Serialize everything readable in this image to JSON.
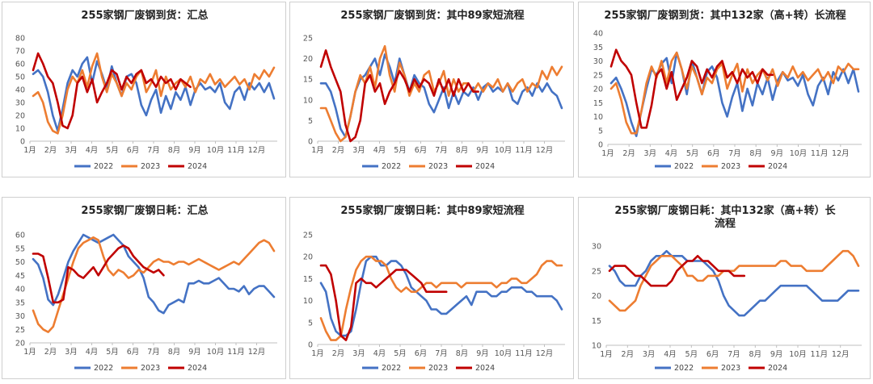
{
  "chart_data": [
    {
      "type": "line",
      "title": "255家钢厂废钢到货：汇总",
      "title_lines": [
        "255家钢厂废钢到货：汇总"
      ],
      "xlabel": "",
      "ylabel": "",
      "x_ticks": [
        "1月",
        "2月",
        "3月",
        "4月",
        "5月",
        "6月",
        "7月",
        "8月",
        "9月",
        "10月",
        "11月",
        "12月"
      ],
      "ylim": [
        0,
        80
      ],
      "y_step": 10,
      "grid": false,
      "legend_position": "bottom",
      "series": [
        {
          "name": "2022",
          "color": "#4472c4",
          "values": [
            52,
            55,
            50,
            38,
            20,
            8,
            25,
            45,
            55,
            50,
            60,
            65,
            45,
            62,
            52,
            40,
            58,
            45,
            35,
            50,
            52,
            45,
            28,
            20,
            32,
            40,
            22,
            35,
            25,
            38,
            32,
            42,
            28,
            40,
            45,
            40,
            42,
            38,
            45,
            30,
            25,
            38,
            42,
            32,
            45,
            40,
            45,
            38,
            45,
            33
          ]
        },
        {
          "name": "2023",
          "color": "#ed7d31",
          "values": [
            35,
            38,
            30,
            15,
            8,
            6,
            20,
            40,
            50,
            45,
            55,
            42,
            58,
            68,
            50,
            38,
            52,
            45,
            35,
            45,
            40,
            50,
            55,
            38,
            45,
            55,
            35,
            50,
            40,
            45,
            48,
            42,
            50,
            38,
            48,
            45,
            52,
            44,
            48,
            42,
            46,
            50,
            44,
            48,
            40,
            52,
            48,
            55,
            50,
            57
          ]
        },
        {
          "name": "2024",
          "color": "#c00000",
          "values": [
            55,
            68,
            60,
            50,
            45,
            30,
            12,
            10,
            20,
            45,
            50,
            38,
            48,
            30,
            38,
            45,
            55,
            52,
            40,
            50,
            45,
            52,
            55,
            45,
            48,
            42,
            50,
            45,
            48,
            40,
            48,
            45,
            42
          ]
        }
      ]
    },
    {
      "type": "line",
      "title": "255家钢厂废钢到货：其中89家短流程",
      "title_lines": [
        "255家钢厂废钢到货：其中89家短流程"
      ],
      "xlabel": "",
      "ylabel": "",
      "x_ticks": [
        "1月",
        "2月",
        "3月",
        "4月",
        "5月",
        "6月",
        "7月",
        "8月",
        "9月",
        "10月",
        "11月",
        "12月"
      ],
      "ylim": [
        0,
        25
      ],
      "y_step": 5,
      "grid": false,
      "legend_position": "bottom",
      "series": [
        {
          "name": "2022",
          "color": "#4472c4",
          "values": [
            14,
            14,
            12,
            8,
            3,
            1,
            6,
            12,
            15,
            16,
            18,
            20,
            16,
            21,
            18,
            14,
            20,
            16,
            12,
            16,
            14,
            13,
            9,
            7,
            10,
            13,
            8,
            12,
            9,
            12,
            11,
            13,
            10,
            13,
            14,
            12,
            13,
            12,
            14,
            10,
            9,
            12,
            13,
            11,
            14,
            12,
            14,
            12,
            11,
            8
          ]
        },
        {
          "name": "2023",
          "color": "#ed7d31",
          "values": [
            8,
            8,
            5,
            2,
            0,
            1,
            6,
            12,
            16,
            14,
            18,
            13,
            20,
            23,
            16,
            12,
            19,
            16,
            11,
            14,
            12,
            16,
            17,
            12,
            14,
            17,
            11,
            15,
            12,
            14,
            14,
            12,
            14,
            12,
            14,
            13,
            15,
            12,
            14,
            12,
            14,
            15,
            12,
            14,
            13,
            17,
            15,
            18,
            16,
            18
          ]
        },
        {
          "name": "2024",
          "color": "#c00000",
          "values": [
            18,
            22,
            18,
            15,
            12,
            4,
            0,
            1,
            5,
            14,
            16,
            12,
            14,
            9,
            12,
            14,
            17,
            15,
            12,
            15,
            13,
            15,
            14,
            11,
            15,
            12,
            15,
            11,
            15,
            12,
            14,
            12,
            12
          ]
        }
      ]
    },
    {
      "type": "line",
      "title": "255家钢厂废钢到货：其中132家（高+转）长流程",
      "title_lines": [
        "255家钢厂废钢到货：其中132家（高+转）长流程"
      ],
      "xlabel": "",
      "ylabel": "",
      "x_ticks": [
        "1月",
        "2月",
        "3月",
        "4月",
        "5月",
        "6月",
        "7月",
        "8月",
        "9月",
        "10月",
        "11月",
        "12月"
      ],
      "ylim": [
        0,
        40
      ],
      "y_step": 5,
      "grid": false,
      "legend_position": "bottom",
      "series": [
        {
          "name": "2022",
          "color": "#4472c4",
          "values": [
            22,
            24,
            20,
            15,
            8,
            3,
            12,
            20,
            27,
            25,
            29,
            31,
            22,
            33,
            27,
            18,
            30,
            24,
            18,
            26,
            28,
            24,
            15,
            10,
            17,
            22,
            12,
            20,
            14,
            22,
            18,
            24,
            16,
            23,
            26,
            23,
            24,
            21,
            25,
            18,
            14,
            21,
            24,
            18,
            26,
            23,
            27,
            22,
            27,
            19
          ]
        },
        {
          "name": "2023",
          "color": "#ed7d31",
          "values": [
            20,
            22,
            16,
            8,
            4,
            4,
            12,
            22,
            28,
            24,
            30,
            22,
            30,
            33,
            27,
            20,
            28,
            24,
            18,
            24,
            22,
            27,
            29,
            20,
            25,
            29,
            19,
            27,
            22,
            25,
            27,
            23,
            27,
            21,
            26,
            24,
            28,
            24,
            26,
            23,
            25,
            27,
            23,
            26,
            22,
            28,
            26,
            29,
            27,
            27
          ]
        },
        {
          "name": "2024",
          "color": "#c00000",
          "values": [
            28,
            34,
            30,
            28,
            25,
            15,
            6,
            6,
            14,
            25,
            27,
            20,
            26,
            16,
            20,
            24,
            30,
            28,
            22,
            27,
            24,
            28,
            30,
            24,
            26,
            22,
            27,
            24,
            26,
            22,
            27,
            25,
            25
          ]
        }
      ]
    },
    {
      "type": "line",
      "title": "255家钢厂废钢日耗：汇总",
      "title_lines": [
        "255家钢厂废钢日耗：汇总"
      ],
      "xlabel": "",
      "ylabel": "",
      "x_ticks": [
        "1月",
        "2月",
        "3月",
        "4月",
        "5月",
        "6月",
        "7月",
        "8月",
        "9月",
        "10月",
        "11月",
        "12月"
      ],
      "ylim": [
        20,
        60
      ],
      "y_step": 5,
      "grid": false,
      "legend_position": "bottom",
      "series": [
        {
          "name": "2022",
          "color": "#4472c4",
          "values": [
            51,
            49,
            44,
            36,
            34,
            38,
            44,
            50,
            54,
            57,
            60,
            59,
            58,
            57,
            58,
            59,
            60,
            58,
            56,
            52,
            50,
            48,
            44,
            37,
            35,
            32,
            31,
            34,
            35,
            36,
            35,
            42,
            42,
            43,
            42,
            42,
            43,
            44,
            42,
            40,
            40,
            39,
            41,
            38,
            40,
            41,
            41,
            39,
            37
          ]
        },
        {
          "name": "2023",
          "color": "#ed7d31",
          "values": [
            32,
            27,
            25,
            24,
            26,
            32,
            38,
            44,
            50,
            55,
            57,
            58,
            59,
            58,
            52,
            47,
            45,
            47,
            46,
            44,
            45,
            47,
            46,
            48,
            50,
            51,
            50,
            50,
            49,
            50,
            50,
            49,
            50,
            51,
            50,
            49,
            48,
            47,
            48,
            49,
            50,
            49,
            51,
            53,
            55,
            57,
            58,
            57,
            54
          ]
        },
        {
          "name": "2024",
          "color": "#c00000",
          "values": [
            53,
            53,
            52,
            44,
            35,
            35,
            36,
            48,
            47,
            45,
            44,
            46,
            48,
            45,
            48,
            51,
            53,
            55,
            56,
            55,
            52,
            50,
            48,
            47,
            46,
            47,
            45
          ]
        }
      ]
    },
    {
      "type": "line",
      "title": "255家钢厂废钢日耗：其中89家短流程",
      "title_lines": [
        "255家钢厂废钢日耗：其中89家短流程"
      ],
      "xlabel": "",
      "ylabel": "",
      "x_ticks": [
        "1月",
        "2月",
        "3月",
        "4月",
        "5月",
        "6月",
        "7月",
        "8月",
        "9月",
        "10月",
        "11月",
        "12月"
      ],
      "ylim": [
        0,
        25
      ],
      "y_step": 5,
      "grid": false,
      "legend_position": "bottom",
      "series": [
        {
          "name": "2022",
          "color": "#4472c4",
          "values": [
            14,
            12,
            6,
            3,
            2,
            2,
            3,
            8,
            14,
            19,
            20,
            20,
            18,
            18,
            19,
            19,
            18,
            16,
            13,
            12,
            11,
            10,
            8,
            8,
            7,
            7,
            8,
            9,
            10,
            11,
            9,
            12,
            12,
            12,
            11,
            11,
            12,
            12,
            13,
            13,
            13,
            12,
            12,
            11,
            11,
            11,
            11,
            10,
            8
          ]
        },
        {
          "name": "2023",
          "color": "#ed7d31",
          "values": [
            6,
            3,
            1,
            1,
            2,
            8,
            13,
            17,
            19,
            20,
            20,
            19,
            19,
            18,
            15,
            13,
            12,
            13,
            12,
            12,
            13,
            14,
            14,
            13,
            14,
            14,
            14,
            14,
            13,
            14,
            14,
            14,
            14,
            14,
            14,
            13,
            14,
            14,
            15,
            15,
            14,
            14,
            15,
            16,
            18,
            19,
            19,
            18,
            18
          ]
        },
        {
          "name": "2024",
          "color": "#c00000",
          "values": [
            18,
            18,
            16,
            10,
            2,
            1,
            4,
            14,
            15,
            14,
            14,
            13,
            14,
            15,
            16,
            17,
            17,
            17,
            16,
            15,
            14,
            12,
            12,
            12,
            12,
            12
          ]
        }
      ]
    },
    {
      "type": "line",
      "title": "255家钢厂废钢日耗：其中132家（高+转）长流程",
      "title_lines": [
        "255家钢厂废钢日耗：其中132家（高+转）长",
        "流程"
      ],
      "xlabel": "",
      "ylabel": "",
      "x_ticks": [
        "1月",
        "2月",
        "3月",
        "4月",
        "5月",
        "6月",
        "7月",
        "8月",
        "9月",
        "10月",
        "11月",
        "12月"
      ],
      "ylim": [
        10,
        30
      ],
      "y_step": 5,
      "grid": false,
      "legend_position": "bottom",
      "series": [
        {
          "name": "2022",
          "color": "#4472c4",
          "values": [
            26,
            25,
            23,
            22,
            22,
            22,
            24,
            25,
            27,
            28,
            28,
            29,
            28,
            28,
            28,
            27,
            27,
            27,
            27,
            26,
            25,
            23,
            20,
            18,
            17,
            16,
            16,
            17,
            18,
            19,
            19,
            20,
            21,
            22,
            22,
            22,
            22,
            22,
            22,
            21,
            20,
            19,
            19,
            19,
            19,
            20,
            21,
            21,
            21
          ]
        },
        {
          "name": "2023",
          "color": "#ed7d31",
          "values": [
            19,
            18,
            17,
            17,
            18,
            19,
            22,
            24,
            26,
            27,
            28,
            28,
            28,
            27,
            26,
            24,
            24,
            23,
            23,
            24,
            24,
            24,
            25,
            25,
            25,
            26,
            26,
            26,
            26,
            26,
            26,
            26,
            26,
            27,
            27,
            26,
            26,
            26,
            25,
            25,
            25,
            25,
            26,
            27,
            28,
            29,
            29,
            28,
            26
          ]
        },
        {
          "name": "2024",
          "color": "#c00000",
          "values": [
            25,
            26,
            26,
            26,
            25,
            24,
            24,
            23,
            22,
            22,
            22,
            22,
            23,
            25,
            26,
            27,
            27,
            28,
            27,
            27,
            26,
            25,
            25,
            25,
            24,
            24,
            24
          ]
        }
      ]
    }
  ]
}
